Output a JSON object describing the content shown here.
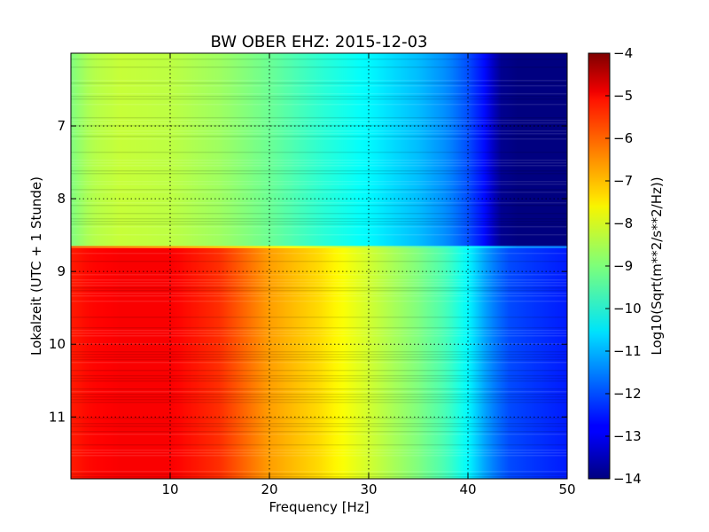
{
  "chart_data": {
    "type": "heatmap",
    "title": "BW OBER EHZ: 2015-12-03",
    "xlabel": "Frequency [Hz]",
    "ylabel": "Lokalzeit (UTC + 1 Stunde)",
    "colorbar_label": "Log10(Sqrt(m**2/s**2/Hz))",
    "xlim": [
      0,
      50
    ],
    "ylim": [
      6.0,
      11.85
    ],
    "y_inverted": true,
    "x_ticks": [
      10,
      20,
      30,
      40,
      50
    ],
    "y_ticks": [
      7,
      8,
      9,
      10,
      11
    ],
    "clim": [
      -14,
      -4
    ],
    "colorbar_ticks": [
      -4,
      -5,
      -6,
      -7,
      -8,
      -9,
      -10,
      -11,
      -12,
      -13,
      -14
    ],
    "colormap": "jet",
    "grid": true,
    "segments": [
      {
        "time_range": [
          6.0,
          8.65
        ],
        "frequency_hz": [
          0,
          2,
          5,
          10,
          15,
          20,
          25,
          30,
          35,
          38,
          40,
          42,
          43,
          45,
          50
        ],
        "log10_amplitude": [
          -9.0,
          -8.5,
          -8.3,
          -8.4,
          -8.7,
          -9.2,
          -9.8,
          -10.3,
          -10.9,
          -11.4,
          -12.0,
          -12.8,
          -13.8,
          -14.0,
          -14.0
        ]
      },
      {
        "time_range": [
          8.65,
          8.68
        ],
        "frequency_hz": [
          0,
          10,
          20,
          30,
          40,
          45,
          50
        ],
        "log10_amplitude": [
          -6.2,
          -6.8,
          -7.6,
          -8.4,
          -10.2,
          -11.4,
          -11.6
        ]
      },
      {
        "time_range": [
          8.68,
          11.85
        ],
        "frequency_hz": [
          0,
          2,
          5,
          10,
          15,
          20,
          25,
          30,
          35,
          38,
          40,
          42,
          44,
          46,
          50
        ],
        "log10_amplitude": [
          -5.5,
          -5.3,
          -5.2,
          -5.2,
          -5.7,
          -6.8,
          -7.4,
          -8.2,
          -9.0,
          -9.6,
          -10.3,
          -11.3,
          -12.0,
          -12.2,
          -12.5
        ]
      }
    ]
  }
}
